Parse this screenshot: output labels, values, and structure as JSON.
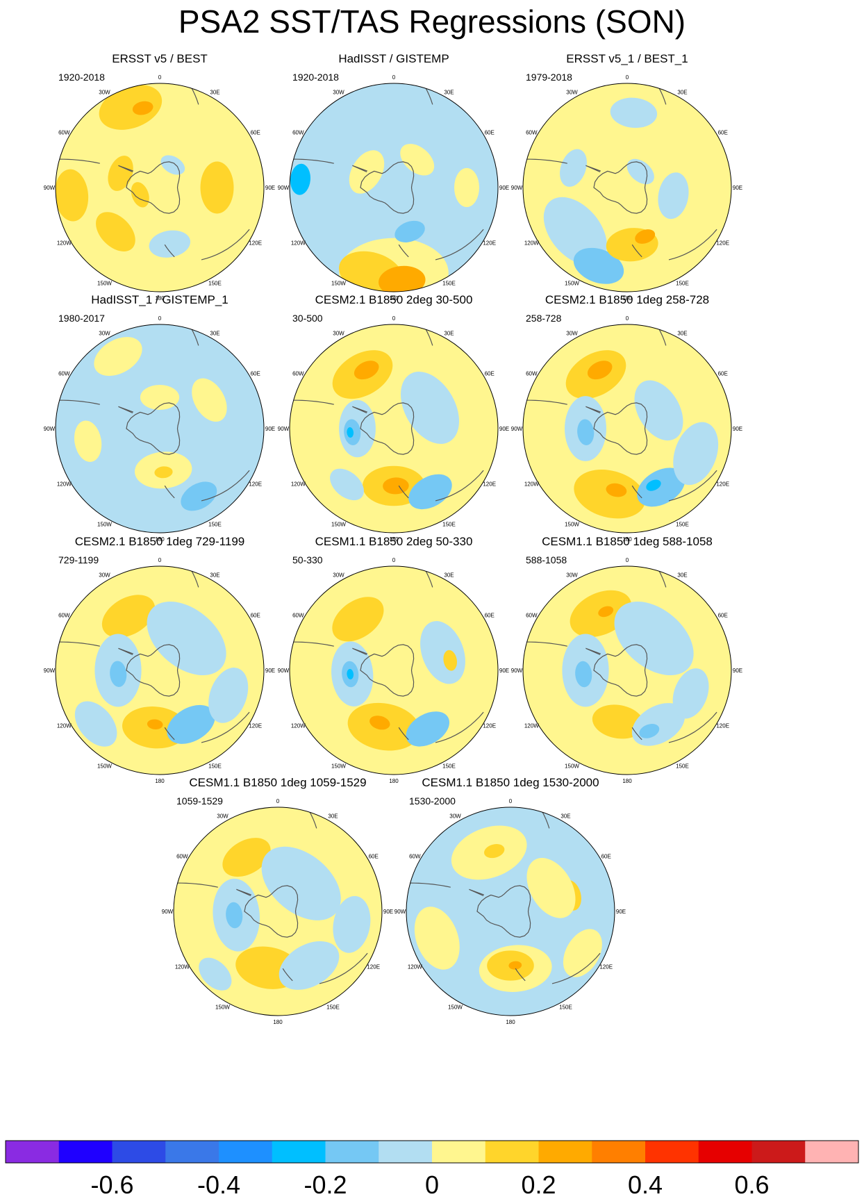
{
  "title": "PSA2 SST/TAS Regressions (SON)",
  "chart_data": {
    "type": "polar-contour-map",
    "projection": "south-polar-stereographic",
    "longitude_labels": [
      {
        "lon": 0,
        "label": "0"
      },
      {
        "lon": 30,
        "label": "30E"
      },
      {
        "lon": 60,
        "label": "60E"
      },
      {
        "lon": 90,
        "label": "90E"
      },
      {
        "lon": 120,
        "label": "120E"
      },
      {
        "lon": 150,
        "label": "150E"
      },
      {
        "lon": 180,
        "label": "180"
      },
      {
        "lon": -150,
        "label": "150W"
      },
      {
        "lon": -120,
        "label": "120W"
      },
      {
        "lon": -90,
        "label": "90W"
      },
      {
        "lon": -60,
        "label": "60W"
      },
      {
        "lon": -30,
        "label": "30W"
      }
    ],
    "panels": [
      {
        "title": "ERSST v5 / BEST",
        "period": "1920-2018",
        "background": "#fff68f",
        "blobs": [
          {
            "lon": -20,
            "r": 0.82,
            "size": 0.25,
            "level": 0.15
          },
          {
            "lon": -12,
            "r": 0.78,
            "size": 0.08,
            "level": 0.25
          },
          {
            "lon": -95,
            "r": 0.85,
            "size": 0.2,
            "level": 0.15
          },
          {
            "lon": 90,
            "r": 0.55,
            "size": 0.2,
            "level": 0.15
          },
          {
            "lon": -135,
            "r": 0.6,
            "size": 0.18,
            "level": 0.15
          },
          {
            "lon": -70,
            "r": 0.4,
            "size": 0.14,
            "level": 0.15
          },
          {
            "lon": 170,
            "r": 0.55,
            "size": 0.16,
            "level": -0.05
          },
          {
            "lon": 30,
            "r": 0.25,
            "size": 0.1,
            "level": -0.05
          },
          {
            "lon": -110,
            "r": 0.2,
            "size": 0.1,
            "level": 0.15
          }
        ]
      },
      {
        "title": "HadISST / GISTEMP",
        "period": "1920-2018",
        "background": "#b2def2",
        "blobs": [
          {
            "lon": 180,
            "r": 0.82,
            "size": 0.42,
            "level": 0.05
          },
          {
            "lon": -165,
            "r": 0.85,
            "size": 0.25,
            "level": 0.15
          },
          {
            "lon": 175,
            "r": 0.9,
            "size": 0.18,
            "level": 0.25
          },
          {
            "lon": -60,
            "r": 0.3,
            "size": 0.18,
            "level": 0.05
          },
          {
            "lon": 40,
            "r": 0.35,
            "size": 0.15,
            "level": 0.05
          },
          {
            "lon": -85,
            "r": 0.9,
            "size": 0.12,
            "level": -0.25
          },
          {
            "lon": 160,
            "r": 0.45,
            "size": 0.12,
            "level": -0.15
          },
          {
            "lon": 90,
            "r": 0.7,
            "size": 0.15,
            "level": 0.05
          }
        ]
      },
      {
        "title": "ERSST v5_1 / BEST_1",
        "period": "1979-2018",
        "background": "#fff68f",
        "blobs": [
          {
            "lon": -130,
            "r": 0.65,
            "size": 0.3,
            "level": -0.05
          },
          {
            "lon": -160,
            "r": 0.8,
            "size": 0.2,
            "level": -0.15
          },
          {
            "lon": 175,
            "r": 0.55,
            "size": 0.2,
            "level": 0.15
          },
          {
            "lon": 160,
            "r": 0.5,
            "size": 0.08,
            "level": 0.25
          },
          {
            "lon": 5,
            "r": 0.72,
            "size": 0.18,
            "level": -0.05
          },
          {
            "lon": 100,
            "r": 0.45,
            "size": 0.18,
            "level": -0.05
          },
          {
            "lon": -70,
            "r": 0.55,
            "size": 0.15,
            "level": -0.05
          },
          {
            "lon": 40,
            "r": 0.2,
            "size": 0.12,
            "level": -0.05
          },
          {
            "lon": -100,
            "r": 0.9,
            "size": 0.12,
            "level": 0.05
          }
        ]
      },
      {
        "title": "HadISST_1 / GISTEMP_1",
        "period": "1980-2017",
        "background": "#b2def2",
        "blobs": [
          {
            "lon": 175,
            "r": 0.4,
            "size": 0.22,
            "level": 0.05
          },
          {
            "lon": -30,
            "r": 0.8,
            "size": 0.2,
            "level": 0.05
          },
          {
            "lon": 60,
            "r": 0.55,
            "size": 0.18,
            "level": 0.05
          },
          {
            "lon": -100,
            "r": 0.7,
            "size": 0.16,
            "level": 0.05
          },
          {
            "lon": 150,
            "r": 0.75,
            "size": 0.15,
            "level": -0.15
          },
          {
            "lon": 175,
            "r": 0.42,
            "size": 0.07,
            "level": 0.15
          },
          {
            "lon": 0,
            "r": 0.3,
            "size": 0.15,
            "level": 0.05
          }
        ]
      },
      {
        "title": "CESM2.1 B1850 2deg 30-500",
        "period": "30-500",
        "background": "#fff68f",
        "blobs": [
          {
            "lon": -30,
            "r": 0.6,
            "size": 0.25,
            "level": 0.15
          },
          {
            "lon": -25,
            "r": 0.62,
            "size": 0.1,
            "level": 0.25
          },
          {
            "lon": 180,
            "r": 0.55,
            "size": 0.24,
            "level": 0.15
          },
          {
            "lon": 178,
            "r": 0.55,
            "size": 0.1,
            "level": 0.25
          },
          {
            "lon": -90,
            "r": 0.35,
            "size": 0.22,
            "level": -0.05
          },
          {
            "lon": -95,
            "r": 0.4,
            "size": 0.1,
            "level": -0.15
          },
          {
            "lon": -95,
            "r": 0.42,
            "size": 0.04,
            "level": -0.25
          },
          {
            "lon": 150,
            "r": 0.7,
            "size": 0.18,
            "level": -0.15
          },
          {
            "lon": 60,
            "r": 0.4,
            "size": 0.3,
            "level": -0.05
          },
          {
            "lon": -140,
            "r": 0.7,
            "size": 0.15,
            "level": -0.05
          }
        ]
      },
      {
        "title": "CESM2.1 B1850 1deg 258-728",
        "period": "258-728",
        "background": "#fff68f",
        "blobs": [
          {
            "lon": -30,
            "r": 0.6,
            "size": 0.25,
            "level": 0.15
          },
          {
            "lon": -25,
            "r": 0.62,
            "size": 0.1,
            "level": 0.25
          },
          {
            "lon": -165,
            "r": 0.65,
            "size": 0.28,
            "level": 0.15
          },
          {
            "lon": -170,
            "r": 0.6,
            "size": 0.08,
            "level": 0.25
          },
          {
            "lon": -90,
            "r": 0.4,
            "size": 0.25,
            "level": -0.05
          },
          {
            "lon": -95,
            "r": 0.4,
            "size": 0.1,
            "level": -0.15
          },
          {
            "lon": 150,
            "r": 0.65,
            "size": 0.2,
            "level": -0.15
          },
          {
            "lon": 155,
            "r": 0.6,
            "size": 0.06,
            "level": -0.25
          },
          {
            "lon": 60,
            "r": 0.35,
            "size": 0.25,
            "level": -0.05
          },
          {
            "lon": 110,
            "r": 0.7,
            "size": 0.25,
            "level": -0.05
          }
        ]
      },
      {
        "title": "CESM2.1 B1850 1deg 729-1199",
        "period": "729-1199",
        "background": "#fff68f",
        "blobs": [
          {
            "lon": -30,
            "r": 0.6,
            "size": 0.22,
            "level": 0.15
          },
          {
            "lon": -175,
            "r": 0.55,
            "size": 0.25,
            "level": 0.15
          },
          {
            "lon": -175,
            "r": 0.52,
            "size": 0.06,
            "level": 0.25
          },
          {
            "lon": -90,
            "r": 0.4,
            "size": 0.28,
            "level": -0.05
          },
          {
            "lon": -95,
            "r": 0.4,
            "size": 0.1,
            "level": -0.15
          },
          {
            "lon": 150,
            "r": 0.6,
            "size": 0.2,
            "level": -0.15
          },
          {
            "lon": 40,
            "r": 0.4,
            "size": 0.35,
            "level": -0.05
          },
          {
            "lon": 110,
            "r": 0.7,
            "size": 0.22,
            "level": -0.05
          },
          {
            "lon": -130,
            "r": 0.8,
            "size": 0.2,
            "level": -0.05
          }
        ]
      },
      {
        "title": "CESM1.1 B1850 2deg 50-330",
        "period": "50-330",
        "background": "#fff68f",
        "blobs": [
          {
            "lon": -35,
            "r": 0.6,
            "size": 0.22,
            "level": 0.15
          },
          {
            "lon": -170,
            "r": 0.55,
            "size": 0.28,
            "level": 0.15
          },
          {
            "lon": -165,
            "r": 0.52,
            "size": 0.08,
            "level": 0.25
          },
          {
            "lon": -95,
            "r": 0.4,
            "size": 0.25,
            "level": -0.05
          },
          {
            "lon": -95,
            "r": 0.42,
            "size": 0.1,
            "level": -0.15
          },
          {
            "lon": -95,
            "r": 0.42,
            "size": 0.04,
            "level": -0.25
          },
          {
            "lon": 150,
            "r": 0.65,
            "size": 0.18,
            "level": -0.15
          },
          {
            "lon": 70,
            "r": 0.5,
            "size": 0.25,
            "level": -0.05
          },
          {
            "lon": 80,
            "r": 0.55,
            "size": 0.08,
            "level": 0.15
          }
        ]
      },
      {
        "title": "CESM1.1 B1850 1deg 588-1058",
        "period": "588-1058",
        "background": "#fff68f",
        "blobs": [
          {
            "lon": -25,
            "r": 0.6,
            "size": 0.25,
            "level": 0.15
          },
          {
            "lon": -20,
            "r": 0.6,
            "size": 0.06,
            "level": 0.25
          },
          {
            "lon": -170,
            "r": 0.5,
            "size": 0.2,
            "level": 0.15
          },
          {
            "lon": -90,
            "r": 0.4,
            "size": 0.28,
            "level": -0.05
          },
          {
            "lon": -95,
            "r": 0.42,
            "size": 0.1,
            "level": -0.15
          },
          {
            "lon": 150,
            "r": 0.6,
            "size": 0.22,
            "level": -0.05
          },
          {
            "lon": 160,
            "r": 0.62,
            "size": 0.08,
            "level": -0.15
          },
          {
            "lon": 40,
            "r": 0.4,
            "size": 0.35,
            "level": -0.05
          },
          {
            "lon": 110,
            "r": 0.65,
            "size": 0.2,
            "level": -0.05
          }
        ]
      },
      {
        "title": "CESM1.1 B1850 1deg 1059-1529",
        "period": "1059-1529",
        "background": "#fff68f",
        "blobs": [
          {
            "lon": -30,
            "r": 0.6,
            "size": 0.2,
            "level": 0.15
          },
          {
            "lon": -170,
            "r": 0.55,
            "size": 0.25,
            "level": 0.15
          },
          {
            "lon": -95,
            "r": 0.4,
            "size": 0.28,
            "level": -0.05
          },
          {
            "lon": -95,
            "r": 0.42,
            "size": 0.1,
            "level": -0.15
          },
          {
            "lon": 150,
            "r": 0.6,
            "size": 0.25,
            "level": -0.05
          },
          {
            "lon": 40,
            "r": 0.35,
            "size": 0.35,
            "level": -0.05
          },
          {
            "lon": 100,
            "r": 0.72,
            "size": 0.22,
            "level": -0.05
          },
          {
            "lon": -135,
            "r": 0.85,
            "size": 0.15,
            "level": -0.05
          }
        ]
      },
      {
        "title": "CESM1.1 B1850 1deg 1530-2000",
        "period": "1530-2000",
        "background": "#b2def2",
        "blobs": [
          {
            "lon": -20,
            "r": 0.6,
            "size": 0.3,
            "level": 0.05
          },
          {
            "lon": -15,
            "r": 0.6,
            "size": 0.08,
            "level": 0.15
          },
          {
            "lon": 175,
            "r": 0.55,
            "size": 0.28,
            "level": 0.05
          },
          {
            "lon": 180,
            "r": 0.52,
            "size": 0.18,
            "level": 0.15
          },
          {
            "lon": 175,
            "r": 0.52,
            "size": 0.05,
            "level": 0.25
          },
          {
            "lon": 75,
            "r": 0.6,
            "size": 0.12,
            "level": 0.15
          },
          {
            "lon": 60,
            "r": 0.45,
            "size": 0.25,
            "level": 0.05
          },
          {
            "lon": -110,
            "r": 0.75,
            "size": 0.25,
            "level": 0.05
          },
          {
            "lon": 120,
            "r": 0.8,
            "size": 0.2,
            "level": 0.05
          }
        ]
      }
    ],
    "colorbar": {
      "levels": [
        -0.7,
        -0.6,
        -0.5,
        -0.4,
        -0.3,
        -0.2,
        -0.1,
        0,
        0.1,
        0.2,
        0.3,
        0.4,
        0.5,
        0.6,
        0.7
      ],
      "colors": [
        "#8a2be2",
        "#1f00ff",
        "#2d4be6",
        "#3a78e8",
        "#1e90ff",
        "#00bfff",
        "#75c8f4",
        "#b2def2",
        "#fff68f",
        "#ffd52b",
        "#ffaa00",
        "#ff7f00",
        "#ff3300",
        "#e60000",
        "#cc1a1a",
        "#ffb3b3"
      ],
      "tick_labels": [
        {
          "value": -0.6,
          "label": "-0.6"
        },
        {
          "value": -0.4,
          "label": "-0.4"
        },
        {
          "value": -0.2,
          "label": "-0.2"
        },
        {
          "value": 0,
          "label": "0"
        },
        {
          "value": 0.2,
          "label": "0.2"
        },
        {
          "value": 0.4,
          "label": "0.4"
        },
        {
          "value": 0.6,
          "label": "0.6"
        }
      ]
    }
  }
}
